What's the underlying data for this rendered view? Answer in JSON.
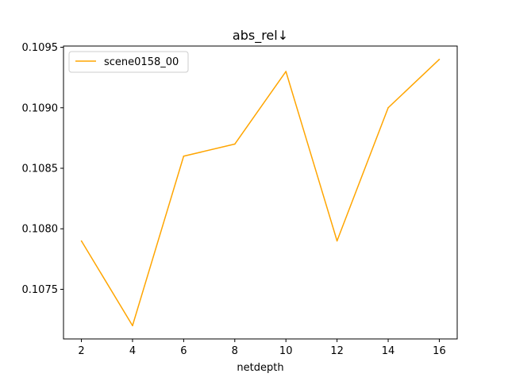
{
  "chart_data": {
    "type": "line",
    "title": "abs_rel↓",
    "xlabel": "netdepth",
    "ylabel": "",
    "x": [
      2,
      4,
      6,
      8,
      10,
      12,
      14,
      16
    ],
    "series": [
      {
        "name": "scene0158_00",
        "values": [
          0.1079,
          0.1072,
          0.1086,
          0.1087,
          0.1093,
          0.1079,
          0.109,
          0.1094
        ],
        "color": "#ffa500"
      }
    ],
    "xlim": [
      1.3,
      16.7
    ],
    "ylim": [
      0.10709,
      0.10951
    ],
    "xticks": [
      "2",
      "4",
      "6",
      "8",
      "10",
      "12",
      "14",
      "16"
    ],
    "yticks": [
      "0.1075",
      "0.1080",
      "0.1085",
      "0.1090",
      "0.1095"
    ],
    "grid": false,
    "legend": "top-left"
  }
}
